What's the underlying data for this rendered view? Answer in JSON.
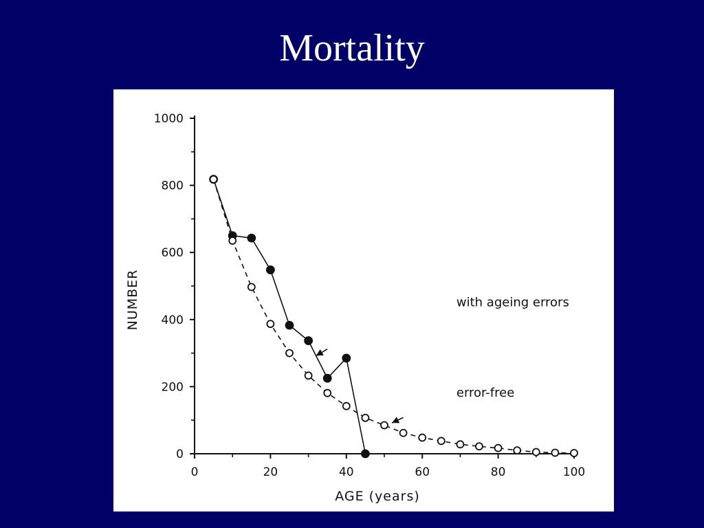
{
  "slide": {
    "title": "Mortality"
  },
  "colors": {
    "background": "#000066",
    "panel": "#ffffff",
    "ink": "#111111"
  },
  "chart_data": {
    "type": "line",
    "title": "",
    "xlabel": "AGE (years)",
    "ylabel": "NUMBER",
    "xlim": [
      0,
      100
    ],
    "ylim": [
      0,
      1000
    ],
    "xticks": [
      0,
      20,
      40,
      60,
      80,
      100
    ],
    "yticks": [
      0,
      200,
      400,
      600,
      800,
      1000
    ],
    "grid": false,
    "series": [
      {
        "name": "with ageing errors",
        "marker": "filled-circle",
        "line": "solid",
        "x": [
          5,
          10,
          15,
          20,
          25,
          30,
          35,
          40,
          45
        ],
        "y": [
          818,
          650,
          643,
          548,
          383,
          337,
          225,
          285,
          0
        ]
      },
      {
        "name": "error-free",
        "marker": "open-circle",
        "line": "dashed",
        "x": [
          5,
          10,
          15,
          20,
          25,
          30,
          35,
          40,
          45,
          50,
          55,
          60,
          65,
          70,
          75,
          80,
          85,
          90,
          95,
          100
        ],
        "y": [
          818,
          635,
          497,
          387,
          300,
          233,
          181,
          142,
          107,
          85,
          62,
          48,
          38,
          28,
          22,
          17,
          10,
          5,
          3,
          2
        ]
      }
    ],
    "annotations": [
      {
        "text": "with ageing errors",
        "x": 69,
        "y": 440
      },
      {
        "text": "error-free",
        "x": 69,
        "y": 170
      }
    ],
    "arrows": [
      {
        "from": [
          35,
          312
        ],
        "to": [
          32,
          292
        ]
      },
      {
        "from": [
          55,
          108
        ],
        "to": [
          52,
          92
        ]
      }
    ]
  }
}
